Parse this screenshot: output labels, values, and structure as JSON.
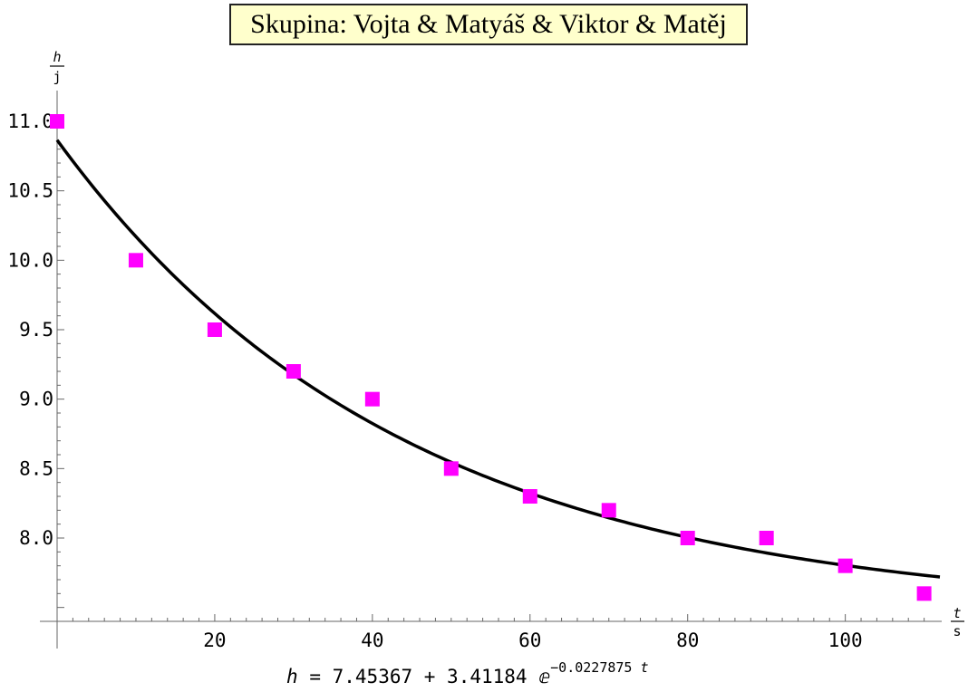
{
  "chart_data": {
    "type": "scatter",
    "title": "Skupina: Vojta & Matyáš & Viktor & Matěj",
    "x_unit": {
      "var": "t",
      "unit": "s"
    },
    "y_unit": {
      "var": "h",
      "unit": "j"
    },
    "xlim": [
      0,
      112
    ],
    "ylim": [
      7.43,
      11.2
    ],
    "x_ticks": [
      20,
      40,
      60,
      80,
      100
    ],
    "x_tick_labels": [
      "20",
      "40",
      "60",
      "80",
      "100"
    ],
    "y_ticks": [
      8.0,
      8.5,
      9.0,
      9.5,
      10.0,
      10.5,
      11.0
    ],
    "y_tick_labels": [
      "8.0",
      "8.5",
      "9.0",
      "9.5",
      "10.0",
      "10.5",
      "11.0"
    ],
    "series": [
      {
        "points": [
          {
            "x": 0,
            "y": 11.0
          },
          {
            "x": 10,
            "y": 10.0
          },
          {
            "x": 20,
            "y": 9.5
          },
          {
            "x": 30,
            "y": 9.2
          },
          {
            "x": 40,
            "y": 9.0
          },
          {
            "x": 50,
            "y": 8.5
          },
          {
            "x": 60,
            "y": 8.3
          },
          {
            "x": 70,
            "y": 8.2
          },
          {
            "x": 80,
            "y": 8.0
          },
          {
            "x": 90,
            "y": 8.0
          },
          {
            "x": 100,
            "y": 7.8
          },
          {
            "x": 110,
            "y": 7.6
          }
        ],
        "color": "#ff00ff",
        "marker": "square"
      }
    ],
    "fit": {
      "a": 7.45367,
      "b": 3.41184,
      "k": -0.0227875,
      "color": "#000000"
    },
    "formula": {
      "lhs": "h",
      "eq": "=",
      "base": "7.45367 + 3.41184",
      "e": "ⅇ",
      "exp_coef": "−0.0227875",
      "exp_var": "t"
    },
    "grid": false
  }
}
